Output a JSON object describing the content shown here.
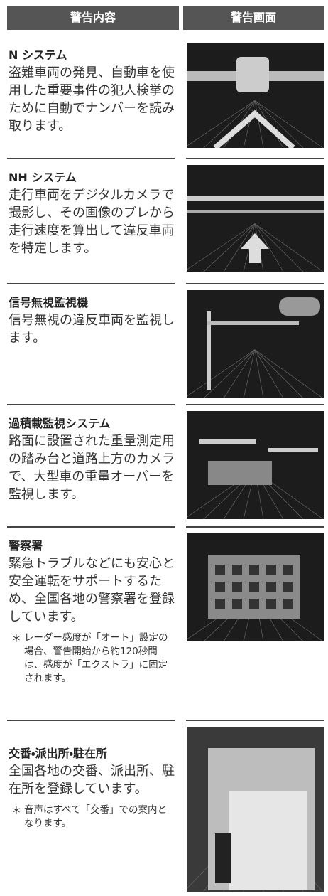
{
  "header": {
    "columns": [
      "警告内容",
      "警告画面"
    ]
  },
  "rows": [
    {
      "title": "N システム",
      "description": "盗難車両の発見、自動車を使用した重要事件の犯人検挙のために自動でナンバーを読み取ります。"
    },
    {
      "title": "NH システム",
      "description": "走行車両をデジタルカメラで撮影し、その画像のブレから走行速度を算出して違反車両を特定します。"
    },
    {
      "title": "信号無視監視機",
      "description": "信号無視の違反車両を監視します。"
    },
    {
      "title": "過積載監視システム",
      "description": "路面に設置された重量測定用の踏み台と道路上方のカメラで、大型車の重量オーバーを監視します。"
    },
    {
      "title": "警察署",
      "description": "緊急トラブルなどにも安心と安全運転をサポートするため、全国各地の警察署を登録しています。",
      "note_mark": "＊",
      "note": "レーダー感度が「オート」設定の場合、警告開始から約120秒間は、感度が「エクストラ」に固定されます。"
    },
    {
      "title": "交番・派出所・駐在所",
      "description": "全国各地の交番、派出所、駐在所を登録しています。",
      "note_mark": "＊",
      "note": "音声はすべて「交番」での案内となります。"
    }
  ]
}
